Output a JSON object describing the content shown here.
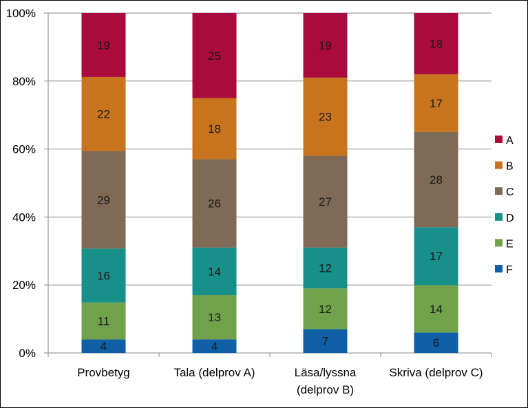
{
  "chart_data": {
    "type": "bar",
    "stacked": true,
    "normalized": true,
    "categories": [
      [
        "Provbetyg"
      ],
      [
        "Tala (delprov A)"
      ],
      [
        "Läsa/lyssna",
        "(delprov B)"
      ],
      [
        "Skriva (delprov C)"
      ]
    ],
    "series": [
      {
        "name": "F",
        "color": "#0e5fa6",
        "values": [
          4,
          4,
          7,
          6
        ]
      },
      {
        "name": "E",
        "color": "#6fa24a",
        "values": [
          11,
          13,
          12,
          14
        ]
      },
      {
        "name": "D",
        "color": "#169088",
        "values": [
          16,
          14,
          12,
          17
        ]
      },
      {
        "name": "C",
        "color": "#7f6a55",
        "values": [
          29,
          26,
          27,
          28
        ]
      },
      {
        "name": "B",
        "color": "#c8741e",
        "values": [
          22,
          18,
          23,
          17
        ]
      },
      {
        "name": "A",
        "color": "#aa0a3c",
        "values": [
          19,
          25,
          19,
          18
        ]
      }
    ],
    "y_ticks": [
      "0%",
      "20%",
      "40%",
      "60%",
      "80%",
      "100%"
    ],
    "ylim": [
      0,
      100
    ],
    "grid": true,
    "legend_position": "right"
  }
}
